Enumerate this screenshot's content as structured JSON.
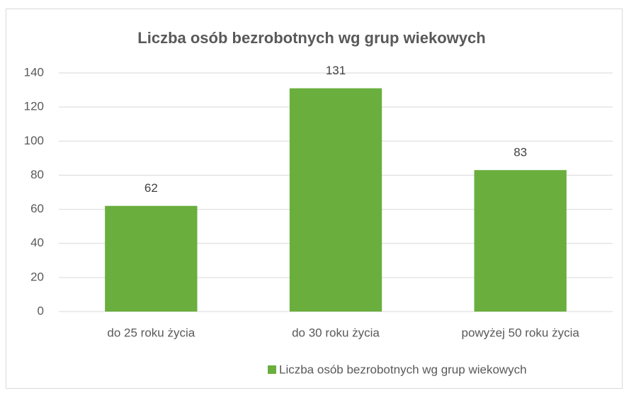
{
  "chart_data": {
    "type": "bar",
    "title": "Liczba osób bezrobotnych wg grup wiekowych",
    "categories": [
      "do 25 roku życia",
      "do 30 roku życia",
      "powyżej 50 roku życia"
    ],
    "series": [
      {
        "name": "Liczba osób bezrobotnych wg grup wiekowych",
        "color": "#6aae3e",
        "values": [
          62,
          131,
          83
        ]
      }
    ],
    "ylim": [
      0,
      140
    ],
    "yticks": [
      0,
      20,
      40,
      60,
      80,
      100,
      120,
      140
    ],
    "grid": true,
    "legend": "bottom"
  }
}
